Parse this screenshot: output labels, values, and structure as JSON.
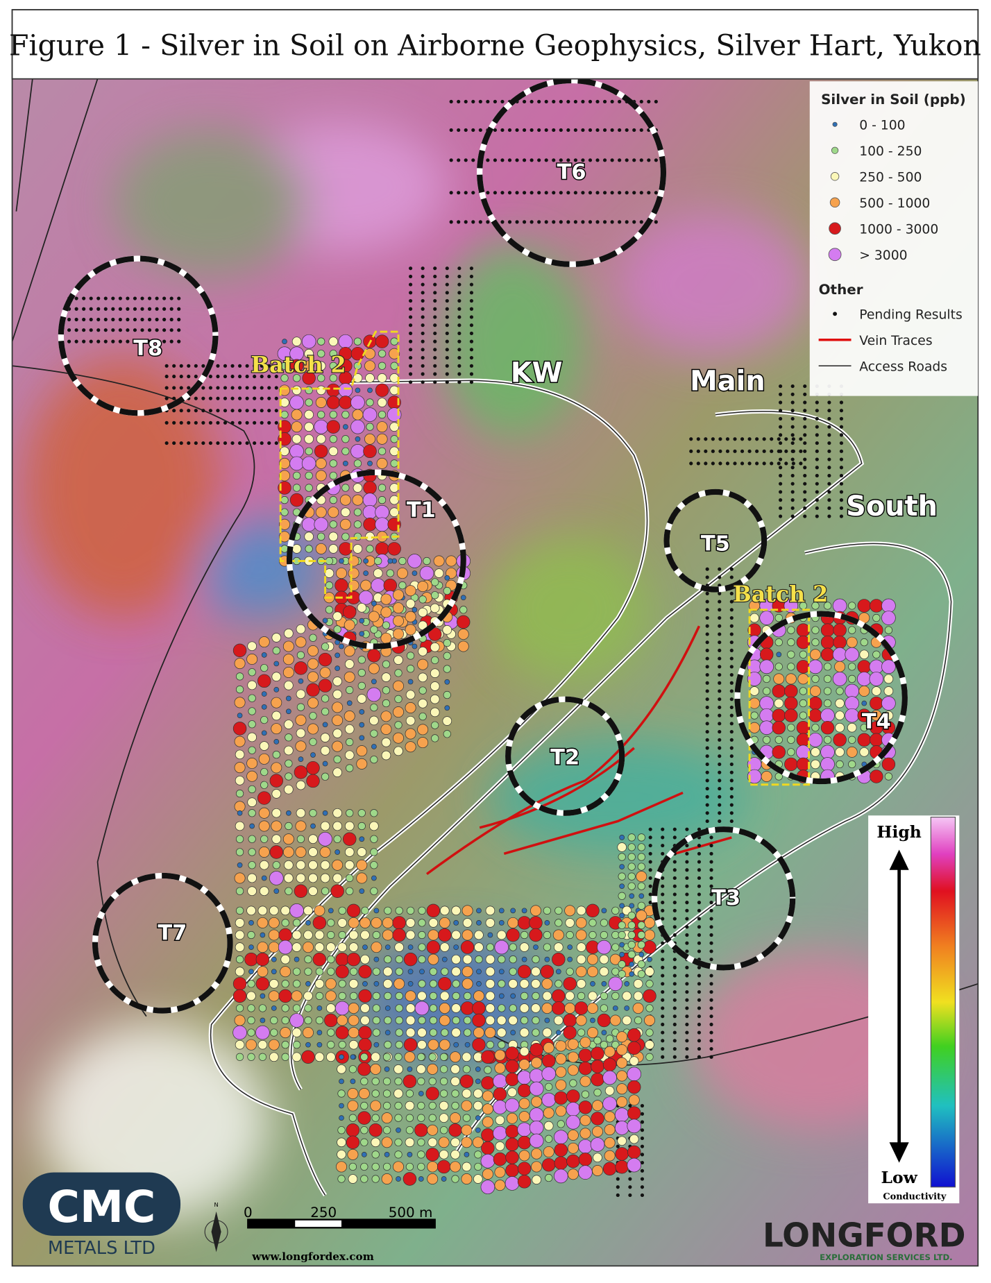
{
  "title": "Figure 1 - Silver in Soil on Airborne Geophysics, Silver Hart, Yukon",
  "legend": {
    "title": "Silver in Soil (ppb)",
    "classes": [
      {
        "label": "0 - 100",
        "color": "#2f6fb5"
      },
      {
        "label": "100 - 250",
        "color": "#9fd88a"
      },
      {
        "label": "250 - 500",
        "color": "#fbf7b8"
      },
      {
        "label": "500 - 1000",
        "color": "#f6a24e"
      },
      {
        "label": "1000 - 3000",
        "color": "#d7191c"
      },
      {
        "label": "> 3000",
        "color": "#d47cf0"
      }
    ],
    "other_title": "Other",
    "other": [
      {
        "label": "Pending Results",
        "color": "#111111"
      },
      {
        "label": "Vein Traces",
        "color": "#e01010"
      },
      {
        "label": "Access Roads",
        "color": "#222222"
      }
    ]
  },
  "targets": [
    "T1",
    "T2",
    "T3",
    "T4",
    "T5",
    "T6",
    "T7",
    "T8"
  ],
  "zones": [
    "KW",
    "Main",
    "South"
  ],
  "batches": [
    "Batch 2",
    "Batch 2"
  ],
  "conductivity": {
    "high": "High",
    "low": "Low",
    "label": "Conductivity"
  },
  "scale_bar": [
    "0",
    "250",
    "500 m"
  ],
  "logos": {
    "cmc": "CMC",
    "cmc_sub": "METALS LTD",
    "longford": "LONGFORD",
    "longford_sub": "EXPLORATION SERVICES LTD.",
    "url": "www.longfordex.com",
    "north": "N"
  }
}
